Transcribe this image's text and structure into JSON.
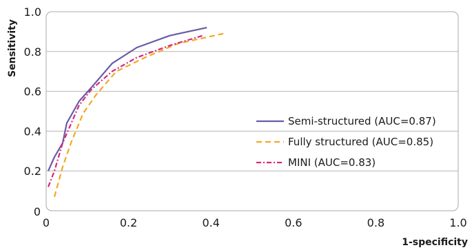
{
  "chart_data": {
    "type": "line",
    "xlabel": "1-specificity",
    "ylabel": "Sensitivity",
    "xlim": [
      0,
      1.0
    ],
    "ylim": [
      0,
      1.0
    ],
    "x_ticks": [
      "0",
      "0.2",
      "0.4",
      "0.6",
      "0.8",
      "1.0"
    ],
    "y_ticks": [
      "0.2",
      "0.4",
      "0.6",
      "0.8",
      "1.0"
    ],
    "grid": "horizontal",
    "legend_position": "right",
    "series": [
      {
        "name": "Semi-structured (AUC=0.87)",
        "color": "#6a5aa8",
        "style": "solid",
        "points": [
          [
            0.005,
            0.2
          ],
          [
            0.02,
            0.27
          ],
          [
            0.04,
            0.34
          ],
          [
            0.05,
            0.44
          ],
          [
            0.08,
            0.55
          ],
          [
            0.11,
            0.62
          ],
          [
            0.16,
            0.74
          ],
          [
            0.22,
            0.82
          ],
          [
            0.3,
            0.88
          ],
          [
            0.39,
            0.92
          ]
        ]
      },
      {
        "name": "Fully structured (AUC=0.85)",
        "color": "#f5a623",
        "style": "dashed",
        "points": [
          [
            0.02,
            0.07
          ],
          [
            0.04,
            0.22
          ],
          [
            0.06,
            0.34
          ],
          [
            0.09,
            0.49
          ],
          [
            0.12,
            0.58
          ],
          [
            0.17,
            0.7
          ],
          [
            0.24,
            0.77
          ],
          [
            0.32,
            0.84
          ],
          [
            0.43,
            0.89
          ]
        ]
      },
      {
        "name": "MINI (AUC=0.83)",
        "color": "#d6287a",
        "style": "dashdot",
        "points": [
          [
            0.005,
            0.12
          ],
          [
            0.02,
            0.2
          ],
          [
            0.04,
            0.34
          ],
          [
            0.08,
            0.53
          ],
          [
            0.11,
            0.61
          ],
          [
            0.16,
            0.7
          ],
          [
            0.22,
            0.77
          ],
          [
            0.3,
            0.83
          ],
          [
            0.38,
            0.88
          ]
        ]
      }
    ]
  }
}
